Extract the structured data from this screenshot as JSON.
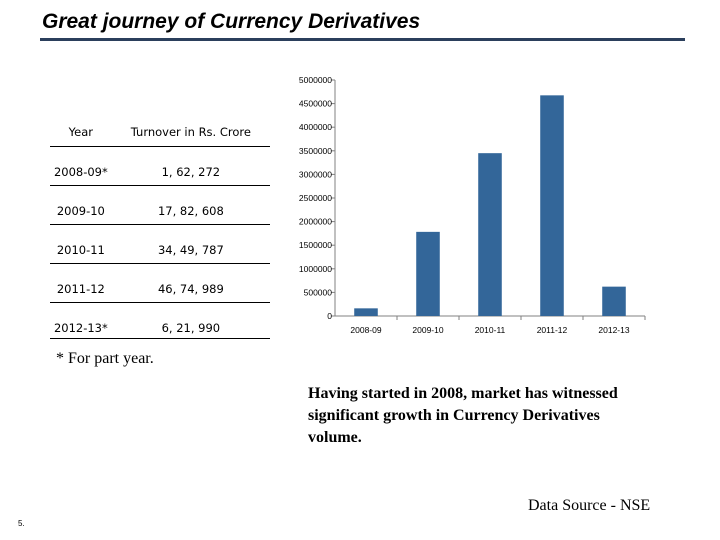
{
  "title": "Great journey of Currency Derivatives",
  "table": {
    "headers": [
      "Year",
      "Turnover in Rs. Crore"
    ],
    "rows": [
      {
        "year": "2008-09*",
        "turnover": "1, 62, 272"
      },
      {
        "year": "2009-10",
        "turnover": "17, 82, 608"
      },
      {
        "year": "2010-11",
        "turnover": "34, 49, 787"
      },
      {
        "year": "2011-12",
        "turnover": "46, 74, 989"
      },
      {
        "year": "2012-13*",
        "turnover": "6, 21, 990"
      }
    ]
  },
  "footnote": "* For part year.",
  "description": "Having started in 2008,  market has witnessed significant growth in Currency Derivatives volume.",
  "source": "Data Source - NSE",
  "slide_number": "5.",
  "chart_data": {
    "type": "bar",
    "categories": [
      "2008-09",
      "2009-10",
      "2010-11",
      "2011-12",
      "2012-13"
    ],
    "values": [
      162272,
      1782608,
      3449787,
      4674989,
      621990
    ],
    "yticks": [
      0,
      500000,
      1000000,
      1500000,
      2000000,
      2500000,
      3000000,
      3500000,
      4000000,
      4500000,
      5000000
    ],
    "ylim": [
      0,
      5000000
    ],
    "bar_color": "#336699",
    "grid": false,
    "legend": false
  }
}
